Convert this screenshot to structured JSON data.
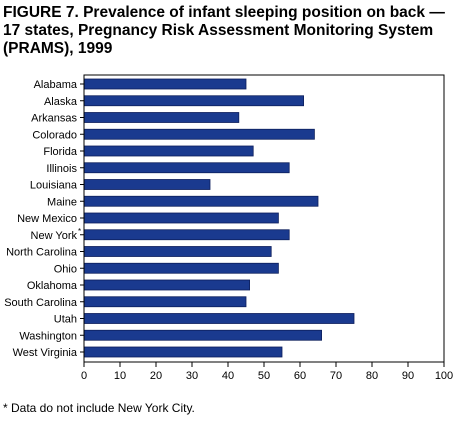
{
  "title_lines": [
    "FIGURE 7. Prevalence of infant sleeping position on back —",
    "17 states, Pregnancy Risk Assessment Monitoring System",
    "(PRAMS), 1999"
  ],
  "footnote": "* Data do not include New York City.",
  "colors": {
    "bar": "#1a3a8f",
    "bar_stroke": "#0d1f5c",
    "axis": "#000000"
  },
  "chart_data": {
    "type": "bar",
    "orientation": "horizontal",
    "categories": [
      "Alabama",
      "Alaska",
      "Arkansas",
      "Colorado",
      "Florida",
      "Illinois",
      "Louisiana",
      "Maine",
      "New Mexico",
      "New York",
      "North Carolina",
      "Ohio",
      "Oklahoma",
      "South Carolina",
      "Utah",
      "Washington",
      "West Virginia"
    ],
    "category_marks": {
      "New York": "*"
    },
    "values": [
      45,
      61,
      43,
      64,
      47,
      57,
      35,
      65,
      54,
      57,
      52,
      54,
      46,
      45,
      75,
      66,
      55
    ],
    "xlim": [
      0,
      100
    ],
    "xticks": [
      0,
      10,
      20,
      30,
      40,
      50,
      60,
      70,
      80,
      90,
      100
    ],
    "title": "FIGURE 7. Prevalence of infant sleeping position on back — 17 states, Pregnancy Risk Assessment Monitoring System (PRAMS), 1999",
    "xlabel": "",
    "ylabel": "",
    "grid": false,
    "legend": "none"
  }
}
